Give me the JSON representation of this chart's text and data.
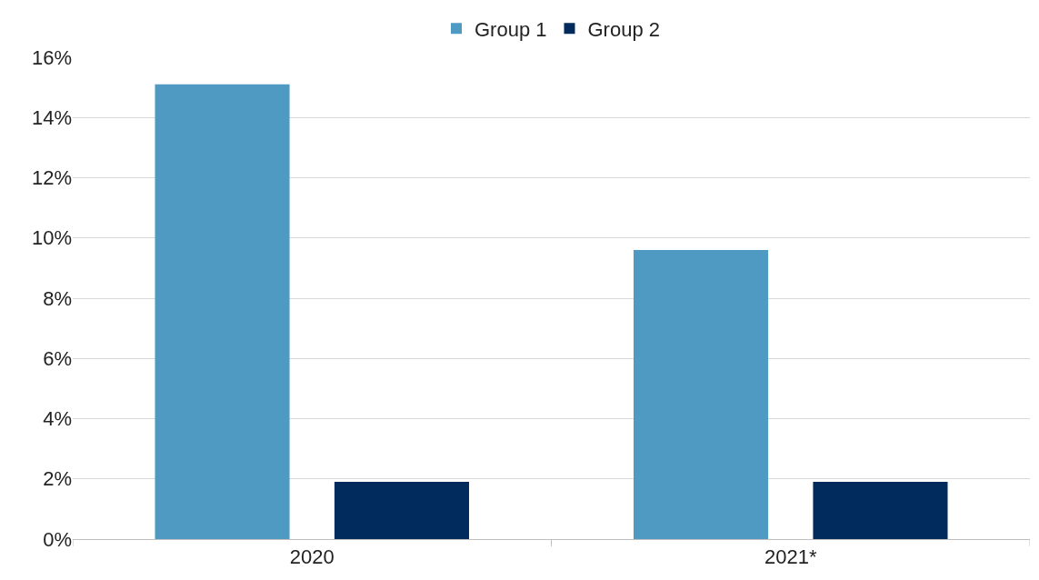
{
  "chart_data": {
    "type": "bar",
    "categories": [
      "2020",
      "2021*"
    ],
    "series": [
      {
        "name": "Group 1",
        "color": "#4f9ac2",
        "values": [
          15.1,
          9.6
        ]
      },
      {
        "name": "Group 2",
        "color": "#002b5c",
        "values": [
          1.9,
          1.9
        ]
      }
    ],
    "ylim": [
      0,
      16
    ],
    "yticks": [
      {
        "value": 0,
        "label": "0%"
      },
      {
        "value": 2,
        "label": "2%"
      },
      {
        "value": 4,
        "label": "4%"
      },
      {
        "value": 6,
        "label": "6%"
      },
      {
        "value": 8,
        "label": "8%"
      },
      {
        "value": 10,
        "label": "10%"
      },
      {
        "value": 12,
        "label": "12%"
      },
      {
        "value": 14,
        "label": "14%"
      },
      {
        "value": 16,
        "label": "16%"
      }
    ],
    "grid": "y",
    "legend": "top"
  }
}
